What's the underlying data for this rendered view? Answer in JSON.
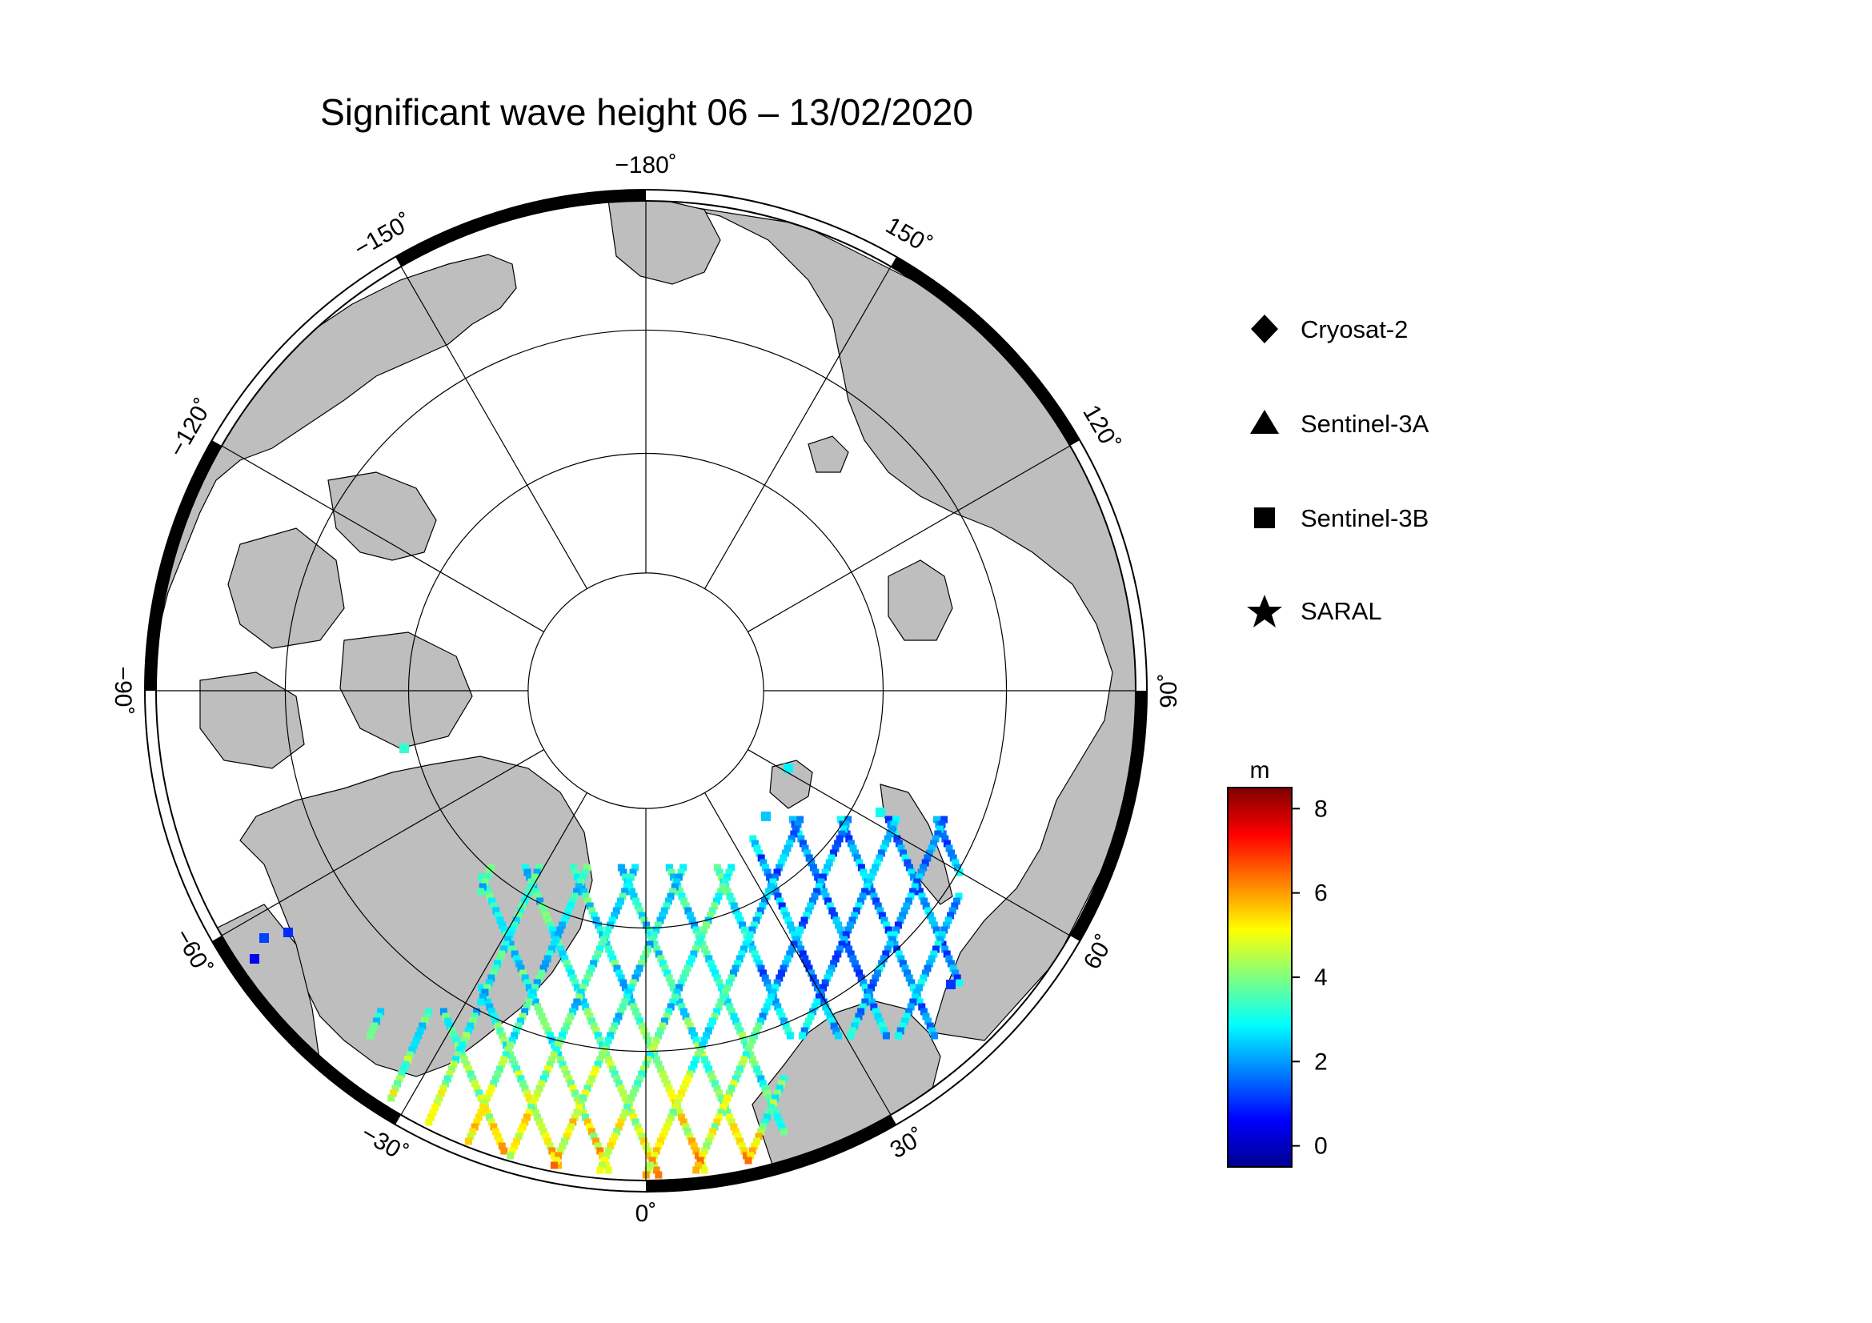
{
  "title": "Significant wave height 06 – 13/02/2020",
  "map": {
    "projection": "north-polar-stereographic",
    "latitude_circles_deg": [
      80,
      70,
      60
    ],
    "longitude_labels": [
      {
        "lon": -180,
        "text": "−180˚"
      },
      {
        "lon": 150,
        "text": "150˚"
      },
      {
        "lon": 120,
        "text": "120˚"
      },
      {
        "lon": 90,
        "text": "90˚"
      },
      {
        "lon": 60,
        "text": "60˚"
      },
      {
        "lon": 30,
        "text": "30˚"
      },
      {
        "lon": 0,
        "text": "0˚"
      },
      {
        "lon": -30,
        "text": "−30˚"
      },
      {
        "lon": -60,
        "text": "−60˚"
      },
      {
        "lon": -90,
        "text": "−90˚"
      },
      {
        "lon": -120,
        "text": "−120˚"
      },
      {
        "lon": -150,
        "text": "−150˚"
      }
    ],
    "land_color": "#bebebe",
    "ocean_ice_color": "#ffffff"
  },
  "legend": {
    "items": [
      {
        "symbol": "diamond-icon",
        "label": "Cryosat-2"
      },
      {
        "symbol": "triangle-icon",
        "label": "Sentinel-3A"
      },
      {
        "symbol": "square-icon",
        "label": "Sentinel-3B"
      },
      {
        "symbol": "star-icon",
        "label": "SARAL"
      }
    ]
  },
  "colorbar": {
    "unit": "m",
    "min": -0.5,
    "max": 8.5,
    "ticks": [
      0,
      2,
      4,
      6,
      8
    ],
    "colormap": "jet"
  }
}
